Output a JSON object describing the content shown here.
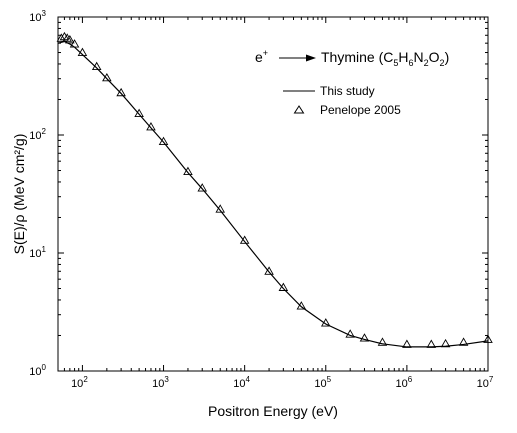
{
  "chart_data": {
    "type": "line",
    "xscale": "log",
    "yscale": "log",
    "xlim": [
      50,
      10000000
    ],
    "ylim": [
      1,
      1000
    ],
    "xlabel": "Positron Energy (eV)",
    "ylabel": "S(E)/ρ (MeV cm²/g)",
    "grid": false,
    "legend_position": "top-right",
    "xticks": [
      {
        "value": 100,
        "base": "10",
        "exp": "2"
      },
      {
        "value": 1000,
        "base": "10",
        "exp": "3"
      },
      {
        "value": 10000,
        "base": "10",
        "exp": "4"
      },
      {
        "value": 100000,
        "base": "10",
        "exp": "5"
      },
      {
        "value": 1000000,
        "base": "10",
        "exp": "6"
      },
      {
        "value": 10000000,
        "base": "10",
        "exp": "7"
      }
    ],
    "yticks": [
      {
        "value": 1,
        "base": "10",
        "exp": "0"
      },
      {
        "value": 10,
        "base": "10",
        "exp": "1"
      },
      {
        "value": 100,
        "base": "10",
        "exp": "2"
      },
      {
        "value": 1000,
        "base": "10",
        "exp": "3"
      }
    ],
    "annotation": {
      "projectile": "e",
      "projectile_sup": "+",
      "target_name": "Thymine (C",
      "formula": [
        {
          "t": "5",
          "sub": true
        },
        {
          "t": "H",
          "sub": false
        },
        {
          "t": "6",
          "sub": true
        },
        {
          "t": "N",
          "sub": false
        },
        {
          "t": "2",
          "sub": true
        },
        {
          "t": "O",
          "sub": false
        },
        {
          "t": "2",
          "sub": true
        },
        {
          "t": ")",
          "sub": false
        }
      ]
    },
    "series": [
      {
        "name": "This study",
        "style": "line",
        "color": "#000000",
        "x": [
          50,
          60,
          70,
          80,
          100,
          150,
          200,
          300,
          500,
          700,
          1000,
          2000,
          3000,
          5000,
          10000,
          20000,
          30000,
          50000,
          100000,
          200000,
          300000,
          500000,
          1000000,
          2000000,
          3000000,
          5000000,
          10000000
        ],
        "y": [
          600,
          620,
          590,
          555,
          480,
          370,
          300,
          225,
          150,
          115,
          87,
          48,
          35,
          23,
          12.5,
          6.9,
          5.0,
          3.5,
          2.5,
          2.0,
          1.85,
          1.7,
          1.6,
          1.6,
          1.62,
          1.68,
          1.8
        ]
      },
      {
        "name": "Penelope 2005",
        "style": "marker",
        "marker": "open-triangle",
        "color": "#000000",
        "x": [
          55,
          60,
          65,
          70,
          80,
          100,
          150,
          200,
          300,
          500,
          700,
          1000,
          2000,
          3000,
          5000,
          10000,
          20000,
          30000,
          50000,
          100000,
          200000,
          300000,
          500000,
          1000000,
          2000000,
          3000000,
          5000000,
          10000000
        ],
        "y": [
          660,
          680,
          660,
          640,
          590,
          500,
          380,
          305,
          228,
          152,
          117,
          88,
          49,
          35.5,
          23.5,
          12.8,
          7.0,
          5.1,
          3.55,
          2.55,
          2.05,
          1.9,
          1.75,
          1.68,
          1.68,
          1.7,
          1.75,
          1.85
        ]
      }
    ]
  }
}
